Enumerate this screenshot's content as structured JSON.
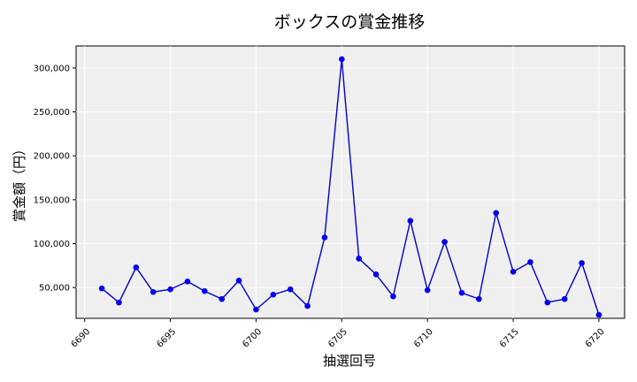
{
  "chart_data": {
    "type": "line",
    "title": "ボックスの賞金推移",
    "xlabel": "抽選回号",
    "ylabel": "賞金額（円）",
    "xlim": [
      6689.5,
      6721.5
    ],
    "ylim": [
      15000,
      325000
    ],
    "x_ticks": [
      6690,
      6695,
      6700,
      6705,
      6710,
      6715,
      6720
    ],
    "y_ticks": [
      50000,
      100000,
      150000,
      200000,
      250000,
      300000
    ],
    "y_tick_labels": [
      "50,000",
      "100,000",
      "150,000",
      "200,000",
      "250,000",
      "300,000"
    ],
    "grid": true,
    "background": "#efefef",
    "line_color": "#0000cc",
    "marker_color": "#0000ee",
    "series": [
      {
        "x": [
          6691,
          6692,
          6693,
          6694,
          6695,
          6696,
          6697,
          6698,
          6699,
          6700,
          6701,
          6702,
          6703,
          6704,
          6705,
          6706,
          6707,
          6708,
          6709,
          6710,
          6711,
          6712,
          6713,
          6714,
          6715,
          6716,
          6717,
          6718,
          6719,
          6720
        ],
        "values": [
          49000,
          33000,
          73000,
          45000,
          48000,
          57000,
          46000,
          37000,
          58000,
          25000,
          42000,
          48000,
          29000,
          107000,
          310000,
          83000,
          65000,
          40000,
          126000,
          47000,
          102000,
          44000,
          37000,
          135000,
          68000,
          79000,
          33000,
          37000,
          78000,
          19000
        ]
      }
    ]
  }
}
